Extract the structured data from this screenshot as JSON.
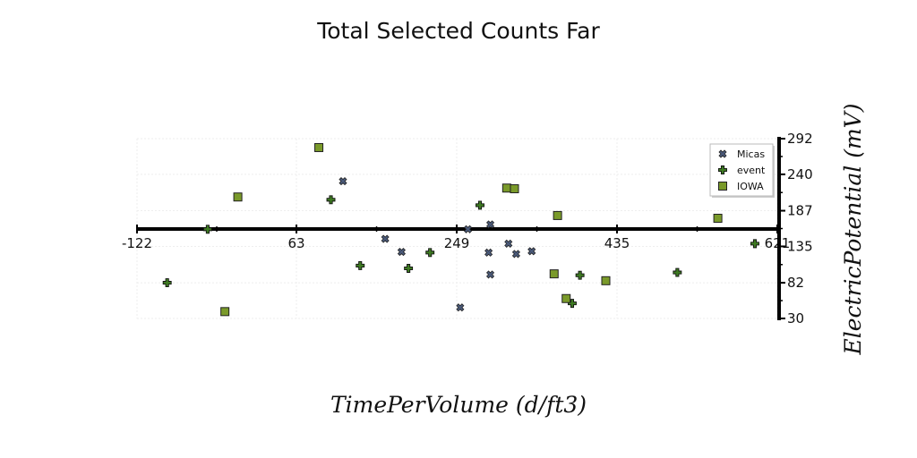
{
  "chart_data": {
    "type": "scatter",
    "title": "Total Selected Counts Far",
    "xlabel": "TimePerVolume (d/ft3)",
    "ylabel": "ElectricPotential (mV)",
    "xlim": [
      -122,
      621
    ],
    "ylim": [
      30,
      292
    ],
    "x_ticks": [
      "-122",
      "63",
      "249",
      "435",
      "621"
    ],
    "y_ticks": [
      "30",
      "82",
      "135",
      "187",
      "240",
      "292"
    ],
    "grid": true,
    "legend_position": "top-right",
    "series": [
      {
        "name": "Micas",
        "marker": "x",
        "color": "#4a5a7a",
        "points": [
          [
            117,
            230
          ],
          [
            166,
            146
          ],
          [
            185,
            127
          ],
          [
            253,
            46
          ],
          [
            262,
            160
          ],
          [
            286,
            126
          ],
          [
            288,
            94
          ],
          [
            288,
            167
          ],
          [
            309,
            139
          ],
          [
            318,
            124
          ],
          [
            336,
            128
          ]
        ]
      },
      {
        "name": "event",
        "marker": "plus",
        "color": "#3e7a22",
        "points": [
          [
            -87,
            82
          ],
          [
            -40,
            160
          ],
          [
            103,
            203
          ],
          [
            137,
            107
          ],
          [
            193,
            103
          ],
          [
            218,
            126
          ],
          [
            276,
            195
          ],
          [
            383,
            52
          ],
          [
            392,
            93
          ],
          [
            505,
            97
          ],
          [
            595,
            139
          ]
        ]
      },
      {
        "name": "IOWA",
        "marker": "square",
        "color": "#7a9a2a",
        "points": [
          [
            -20,
            40
          ],
          [
            -5,
            207
          ],
          [
            89,
            279
          ],
          [
            307,
            220
          ],
          [
            316,
            219
          ],
          [
            362,
            95
          ],
          [
            366,
            180
          ],
          [
            376,
            59
          ],
          [
            422,
            85
          ],
          [
            552,
            176
          ]
        ]
      }
    ]
  }
}
